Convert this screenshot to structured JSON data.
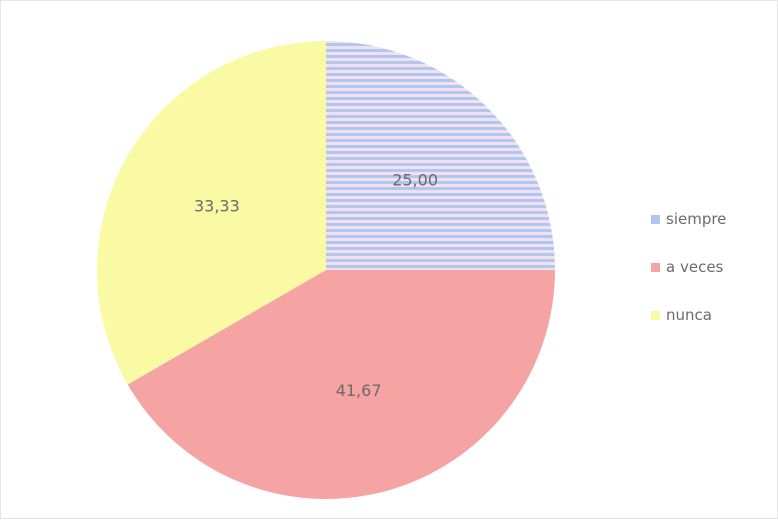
{
  "chart_data": {
    "type": "pie",
    "title": "",
    "categories": [
      "siempre",
      "a veces",
      "nunca"
    ],
    "values": [
      25.0,
      41.67,
      33.33
    ],
    "labels": [
      "25,00",
      "41,67",
      "33,33"
    ],
    "colors": [
      "#aec8ee",
      "#f5a3a3",
      "#fafaa4"
    ],
    "start_angle_deg": 0,
    "direction": "clockwise",
    "legend_position": "right"
  }
}
